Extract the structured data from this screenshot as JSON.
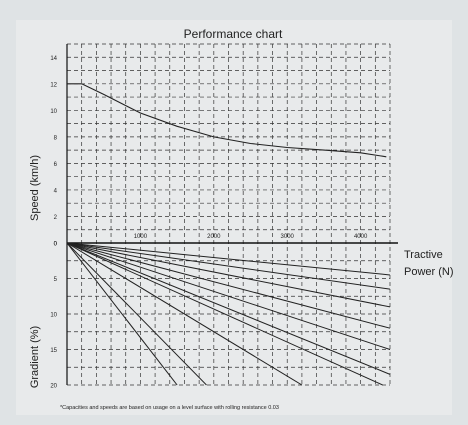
{
  "chart_data": {
    "type": "line",
    "title": "Performance chart",
    "upper_panel": {
      "ylabel": "Speed (km/h)",
      "yticks": [
        "0",
        "2",
        "4",
        "6",
        "8",
        "10",
        "12",
        "14"
      ],
      "ylim": [
        0,
        15
      ],
      "series": [
        {
          "x": [
            0,
            200,
            500,
            1000,
            1500,
            2000,
            2500,
            3000,
            3500,
            4000,
            4350
          ],
          "y": [
            12,
            12,
            11.2,
            9.8,
            8.8,
            8.0,
            7.5,
            7.2,
            7.0,
            6.8,
            6.5
          ]
        }
      ]
    },
    "xaxis": {
      "label_line1": "Tractive",
      "label_line2": "Power (N)",
      "ticks": [
        1000,
        2000,
        3000,
        4000
      ],
      "tick_labels": [
        "1000",
        "2000",
        "3000",
        "4000"
      ],
      "xlim": [
        0,
        4400
      ]
    },
    "lower_panel": {
      "ylabel": "Gradient (%)",
      "yticks": [
        "0",
        "5",
        "10",
        "15",
        "20"
      ],
      "ylim": [
        0,
        20
      ],
      "series": [
        {
          "end": [
            1500,
            20
          ],
          "label": ""
        },
        {
          "end": [
            1900,
            20
          ],
          "label": ""
        },
        {
          "end": [
            3200,
            20
          ],
          "label": ""
        },
        {
          "end": [
            4300,
            20
          ],
          "label": ""
        },
        {
          "end": [
            4400,
            18.5
          ],
          "label": ""
        },
        {
          "end": [
            4400,
            15
          ],
          "label": ""
        },
        {
          "end": [
            4400,
            12
          ],
          "label": ""
        },
        {
          "end": [
            4400,
            9
          ],
          "label": ""
        },
        {
          "end": [
            4400,
            6.5
          ],
          "label": ""
        },
        {
          "end": [
            4400,
            4.5
          ],
          "label": ""
        }
      ]
    },
    "footnote": "*Capacities and speeds are based on usage on a level surface with rolling resistance 0.03",
    "grid": true
  }
}
